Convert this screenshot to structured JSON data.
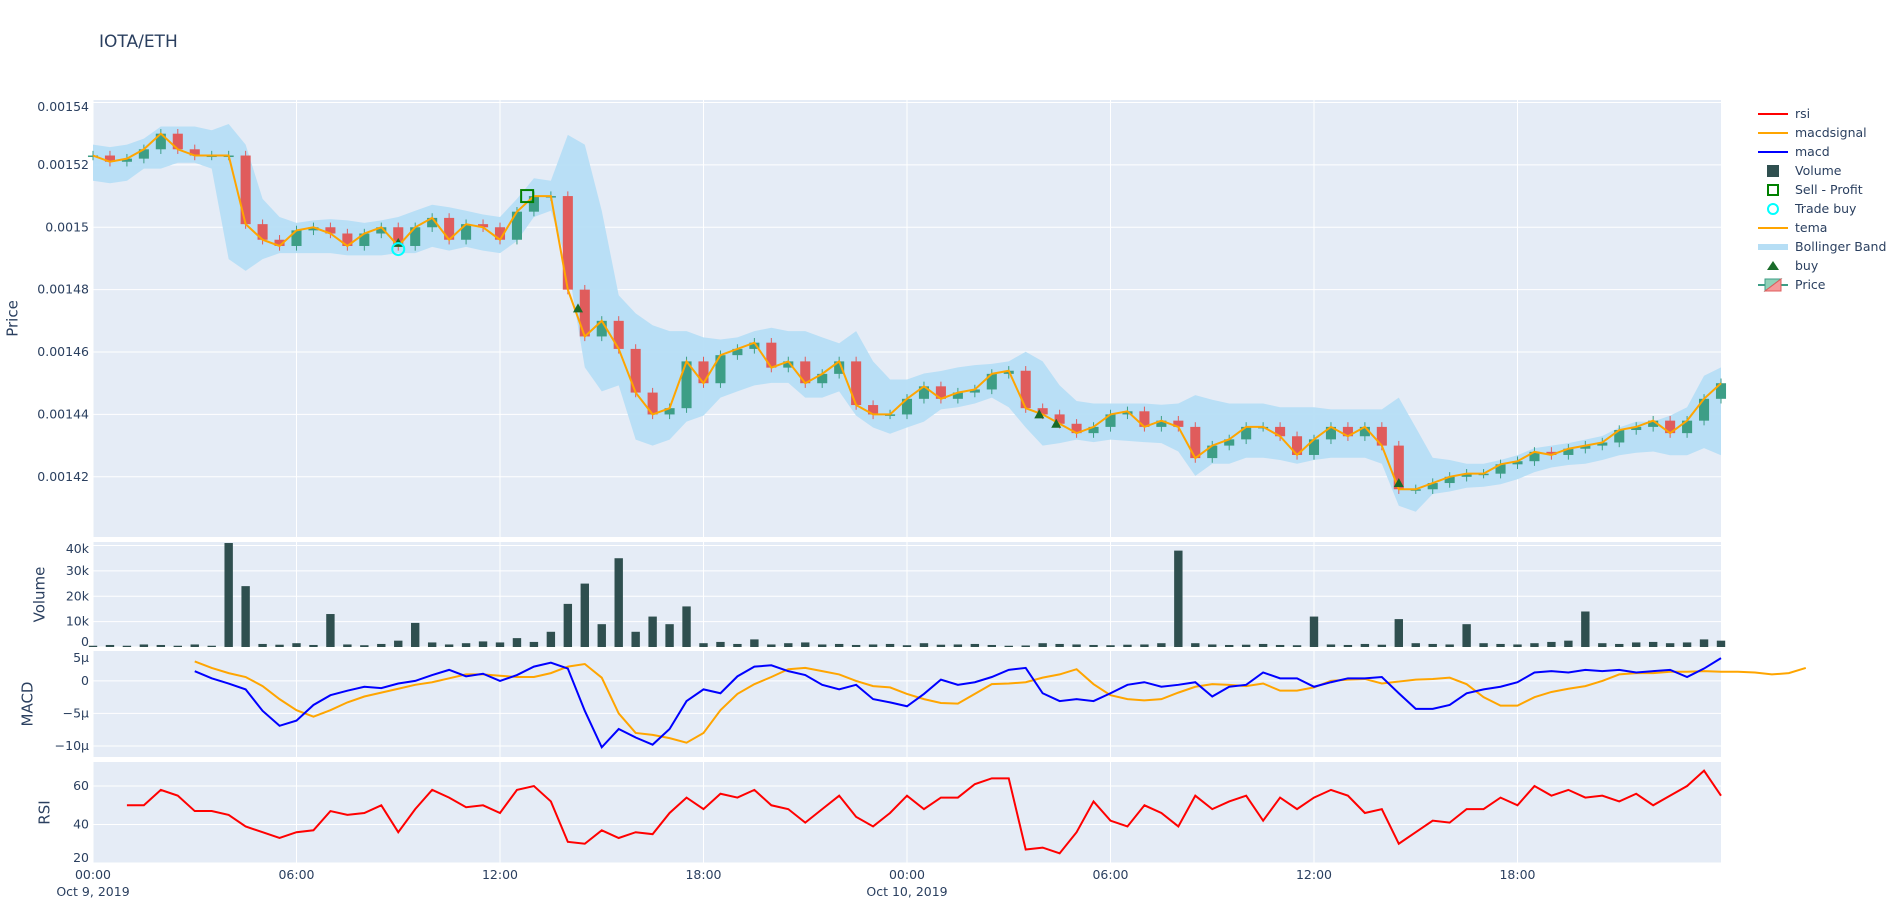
{
  "title": "IOTA/ETH",
  "colors": {
    "bg": "#e5ecf6",
    "grid": "#ffffff",
    "up": "#3d9e86",
    "down": "#e05c5c",
    "tema": "#ffa500",
    "bb": "#b6def5",
    "volume": "#2f4f4f",
    "macd": "#0000ff",
    "macdsignal": "#ffa500",
    "rsi": "#ff0000",
    "buy": "#1a6b2a",
    "sell": "#008000",
    "trade_buy": "#00ffff"
  },
  "legend": [
    {
      "label": "rsi",
      "icon": "line",
      "color": "#ff0000"
    },
    {
      "label": "macdsignal",
      "icon": "line",
      "color": "#ffa500"
    },
    {
      "label": "macd",
      "icon": "line",
      "color": "#0000ff"
    },
    {
      "label": "Volume",
      "icon": "square-filled",
      "color": "#2f4f4f"
    },
    {
      "label": "Sell - Profit",
      "icon": "square-open",
      "color": "#008000"
    },
    {
      "label": "Trade buy",
      "icon": "circle-open",
      "color": "#00ffff"
    },
    {
      "label": "tema",
      "icon": "line",
      "color": "#ffa500"
    },
    {
      "label": "Bollinger Band",
      "icon": "band",
      "color": "#b6def5"
    },
    {
      "label": "buy",
      "icon": "triangle-up",
      "color": "#1a6b2a"
    },
    {
      "label": "Price",
      "icon": "candlestick",
      "color": "#3d9e86"
    }
  ],
  "chart_data": {
    "type": "candlestick+subplots",
    "x_unit": "hours since Oct 9, 2019 00:00 (30-min sampling)",
    "x_range": [
      "Oct 9, 2019 00:00",
      "Oct 11, 2019 00:00"
    ],
    "x_ticks": [
      {
        "label": "00:00",
        "sub": "Oct 9, 2019",
        "h": 0
      },
      {
        "label": "06:00",
        "sub": "",
        "h": 6
      },
      {
        "label": "12:00",
        "sub": "",
        "h": 12
      },
      {
        "label": "18:00",
        "sub": "",
        "h": 18
      },
      {
        "label": "00:00",
        "sub": "Oct 10, 2019",
        "h": 24
      },
      {
        "label": "06:00",
        "sub": "",
        "h": 30
      },
      {
        "label": "12:00",
        "sub": "",
        "h": 36
      },
      {
        "label": "18:00",
        "sub": "",
        "h": 42
      }
    ],
    "grid": true,
    "legend_position": "right",
    "price": {
      "ylabel": "Price",
      "ylim": [
        0.0014007,
        0.0015408
      ],
      "ticks": [
        {
          "v": 0.00142,
          "label": "0.00142"
        },
        {
          "v": 0.00144,
          "label": "0.00144"
        },
        {
          "v": 0.00146,
          "label": "0.00146"
        },
        {
          "v": 0.00148,
          "label": "0.00148"
        },
        {
          "v": 0.0015,
          "label": "0.0015"
        },
        {
          "v": 0.00152,
          "label": "0.00152"
        },
        {
          "v": 0.00154,
          "label": "0.00154"
        }
      ],
      "close": [
        0.001523,
        0.001521,
        0.001522,
        0.001525,
        0.00153,
        0.001525,
        0.001523,
        0.001523,
        0.001523,
        0.001501,
        0.001496,
        0.001494,
        0.001499,
        0.0015,
        0.001498,
        0.001494,
        0.001498,
        0.0015,
        0.001494,
        0.0015,
        0.001503,
        0.001496,
        0.001501,
        0.0015,
        0.001496,
        0.001505,
        0.00151,
        0.00151,
        0.00148,
        0.001465,
        0.00147,
        0.001461,
        0.001447,
        0.00144,
        0.001442,
        0.001457,
        0.00145,
        0.001459,
        0.001461,
        0.001463,
        0.001455,
        0.001457,
        0.00145,
        0.001453,
        0.001457,
        0.001443,
        0.00144,
        0.00144,
        0.001445,
        0.001449,
        0.001445,
        0.001447,
        0.001448,
        0.001453,
        0.001454,
        0.001442,
        0.00144,
        0.001437,
        0.001434,
        0.001436,
        0.00144,
        0.001441,
        0.001436,
        0.001438,
        0.001436,
        0.001426,
        0.00143,
        0.001432,
        0.001436,
        0.001436,
        0.001433,
        0.001427,
        0.001432,
        0.001436,
        0.001433,
        0.001436,
        0.00143,
        0.001416,
        0.001416,
        0.001418,
        0.00142,
        0.001421,
        0.001421,
        0.001424,
        0.001425,
        0.001428,
        0.001427,
        0.001429,
        0.00143,
        0.001431,
        0.001435,
        0.001436,
        0.001438,
        0.001434,
        0.001438,
        0.001445,
        0.00145
      ],
      "bb_upper": [
        0.0015265,
        0.0015257,
        0.0015265,
        0.0015284,
        0.0015323,
        0.0015323,
        0.0015323,
        0.0015311,
        0.0015331,
        0.0015265,
        0.0015091,
        0.0015033,
        0.0015014,
        0.0015022,
        0.0015026,
        0.0015022,
        0.0015014,
        0.0015022,
        0.0015033,
        0.0015053,
        0.0015072,
        0.0015064,
        0.0015053,
        0.0015041,
        0.0015033,
        0.0015091,
        0.0015157,
        0.0015149,
        0.0015296,
        0.0015265,
        0.0015053,
        0.0014782,
        0.0014724,
        0.0014686,
        0.0014667,
        0.0014667,
        0.0014647,
        0.001464,
        0.0014647,
        0.0014667,
        0.0014678,
        0.0014667,
        0.0014667,
        0.0014647,
        0.0014628,
        0.0014667,
        0.001457,
        0.0014512,
        0.0014512,
        0.0014531,
        0.0014539,
        0.0014551,
        0.0014558,
        0.0014562,
        0.001457,
        0.0014601,
        0.001457,
        0.0014493,
        0.0014443,
        0.0014435,
        0.0014435,
        0.0014435,
        0.0014435,
        0.0014431,
        0.0014435,
        0.0014462,
        0.0014447,
        0.0014435,
        0.0014435,
        0.0014435,
        0.0014423,
        0.0014423,
        0.0014423,
        0.0014416,
        0.0014416,
        0.0014416,
        0.0014416,
        0.0014454,
        0.0014358,
        0.0014261,
        0.0014254,
        0.0014242,
        0.0014242,
        0.0014254,
        0.0014269,
        0.0014292,
        0.00143,
        0.0014308,
        0.0014319,
        0.0014331,
        0.0014358,
        0.0014377,
        0.0014377,
        0.0014396,
        0.0014423,
        0.0014524,
        0.0014551
      ],
      "bb_lower": [
        0.0015149,
        0.0015141,
        0.0015149,
        0.0015188,
        0.0015188,
        0.0015207,
        0.0015207,
        0.0015188,
        0.0014898,
        0.001486,
        0.0014898,
        0.0014917,
        0.0014917,
        0.0014917,
        0.0014917,
        0.001491,
        0.001491,
        0.001491,
        0.0014917,
        0.0014917,
        0.0014937,
        0.0014925,
        0.0014937,
        0.0014925,
        0.0014917,
        0.0014956,
        0.0015033,
        0.0015053,
        0.0014879,
        0.0014551,
        0.0014474,
        0.0014493,
        0.0014319,
        0.00143,
        0.0014319,
        0.0014377,
        0.0014396,
        0.0014454,
        0.0014474,
        0.0014493,
        0.0014501,
        0.0014501,
        0.0014454,
        0.0014454,
        0.0014474,
        0.0014396,
        0.0014358,
        0.0014338,
        0.0014358,
        0.0014377,
        0.0014416,
        0.0014423,
        0.0014435,
        0.0014454,
        0.0014423,
        0.0014358,
        0.00143,
        0.0014308,
        0.0014319,
        0.0014311,
        0.0014319,
        0.0014315,
        0.0014311,
        0.0014308,
        0.0014281,
        0.0014203,
        0.0014242,
        0.0014242,
        0.0014261,
        0.0014261,
        0.0014254,
        0.0014242,
        0.0014254,
        0.0014261,
        0.0014261,
        0.0014261,
        0.0014242,
        0.0014107,
        0.0014088,
        0.0014145,
        0.0014153,
        0.0014165,
        0.0014168,
        0.0014176,
        0.0014192,
        0.0014215,
        0.001423,
        0.0014238,
        0.0014242,
        0.0014254,
        0.0014269,
        0.0014277,
        0.0014281,
        0.0014269,
        0.0014269,
        0.0014292,
        0.0014269
      ],
      "buy_signals": [
        {
          "h": 9.0,
          "price": 0.001495
        },
        {
          "h": 14.3,
          "price": 0.001474
        },
        {
          "h": 27.9,
          "price": 0.00144
        },
        {
          "h": 28.4,
          "price": 0.001437
        },
        {
          "h": 38.5,
          "price": 0.001418
        }
      ],
      "trade_buys": [
        {
          "h": 9.0,
          "price": 0.001493
        }
      ],
      "sell_profit": [
        {
          "h": 12.8,
          "price": 0.00151
        }
      ]
    },
    "volume": {
      "ylabel": "Volume",
      "ylim": [
        0,
        41400
      ],
      "ticks": [
        {
          "v": 0,
          "label": "0"
        },
        {
          "v": 10000,
          "label": "10k"
        },
        {
          "v": 20000,
          "label": "20k"
        },
        {
          "v": 30000,
          "label": "30k"
        },
        {
          "v": 40000,
          "label": "40k"
        }
      ],
      "values": [
        500,
        800,
        500,
        1000,
        800,
        500,
        1000,
        500,
        41000,
        24000,
        1200,
        900,
        1500,
        800,
        13000,
        1000,
        700,
        1200,
        2500,
        9500,
        1800,
        1000,
        1500,
        2200,
        1800,
        3500,
        2000,
        6000,
        17000,
        25000,
        9000,
        35000,
        6000,
        12000,
        9000,
        16000,
        1500,
        2000,
        1200,
        3000,
        1000,
        1500,
        1800,
        1000,
        1200,
        800,
        1000,
        1200,
        700,
        1500,
        900,
        1000,
        1200,
        800,
        500,
        600,
        1500,
        1200,
        1000,
        800,
        700,
        900,
        1000,
        1500,
        38000,
        1500,
        1000,
        800,
        900,
        1200,
        800,
        700,
        12000,
        1000,
        800,
        1200,
        900,
        11000,
        1500,
        1200,
        1000,
        9000,
        1500,
        1200,
        1000,
        1500,
        2000,
        2500,
        14000,
        1500,
        1200,
        1800,
        2000,
        1500,
        1800,
        3000,
        2500
      ]
    },
    "macd": {
      "ylabel": "MACD",
      "ylim": [
        -11.7,
        4.6
      ],
      "unit": "µ",
      "ticks": [
        {
          "v": -10,
          "label": "−10µ"
        },
        {
          "v": -5,
          "label": "−5µ"
        },
        {
          "v": 0,
          "label": "0"
        },
        {
          "v": 5,
          "label": "5µ"
        }
      ],
      "start_h": 3,
      "macd": [
        1.5,
        0.4,
        -0.4,
        -1.3,
        -4.6,
        -6.9,
        -6.1,
        -3.7,
        -2.2,
        -1.5,
        -0.9,
        -1.1,
        -0.4,
        0,
        0.9,
        1.7,
        0.7,
        1.1,
        0,
        0.9,
        2.2,
        2.8,
        1.9,
        -4.6,
        -10.2,
        -7.4,
        -8.7,
        -9.8,
        -7.4,
        -3.1,
        -1.3,
        -1.9,
        0.7,
        2.2,
        2.4,
        1.5,
        0.9,
        -0.6,
        -1.3,
        -0.6,
        -2.8,
        -3.3,
        -3.9,
        -2.0,
        0.2,
        -0.6,
        -0.2,
        0.6,
        1.7,
        2.0,
        -1.9,
        -3.1,
        -2.8,
        -3.1,
        -1.9,
        -0.6,
        -0.2,
        -0.9,
        -0.6,
        -0.2,
        -2.4,
        -0.9,
        -0.6,
        1.3,
        0.4,
        0.4,
        -0.9,
        -0.2,
        0.4,
        0.4,
        0.6,
        -1.9,
        -4.3,
        -4.3,
        -3.7,
        -1.9,
        -1.3,
        -0.9,
        -0.2,
        1.3,
        1.5,
        1.3,
        1.7,
        1.5,
        1.7,
        1.3,
        1.5,
        1.7,
        0.6,
        1.9,
        3.5
      ],
      "macdsignal": [
        3.0,
        2.0,
        1.2,
        0.6,
        -0.8,
        -2.8,
        -4.5,
        -5.5,
        -4.5,
        -3.3,
        -2.4,
        -1.8,
        -1.2,
        -0.6,
        -0.2,
        0.4,
        1.0,
        1.0,
        0.8,
        0.6,
        0.6,
        1.2,
        2.2,
        2.6,
        0.5,
        -5.0,
        -8.0,
        -8.3,
        -8.8,
        -9.5,
        -8.0,
        -4.5,
        -2.0,
        -0.5,
        0.6,
        1.8,
        2.0,
        1.5,
        1.0,
        0.0,
        -0.8,
        -1.0,
        -2.0,
        -2.8,
        -3.4,
        -3.5,
        -2.0,
        -0.5,
        -0.4,
        -0.2,
        0.5,
        1.0,
        1.8,
        -0.5,
        -2.2,
        -2.8,
        -3.0,
        -2.8,
        -1.8,
        -0.9,
        -0.5,
        -0.6,
        -0.8,
        -0.4,
        -1.5,
        -1.5,
        -1.0,
        0.0,
        0.2,
        0.3,
        -0.4,
        -0.1,
        0.2,
        0.3,
        0.5,
        -0.5,
        -2.5,
        -3.8,
        -3.8,
        -2.5,
        -1.7,
        -1.2,
        -0.8,
        0.0,
        1.0,
        1.2,
        1.2,
        1.4,
        1.4,
        1.5,
        1.4,
        1.4,
        1.3,
        1.0,
        1.2,
        2.0
      ]
    },
    "rsi": {
      "ylabel": "RSI",
      "ylim": [
        20,
        72.5
      ],
      "ticks": [
        {
          "v": 20,
          "label": "20"
        },
        {
          "v": 40,
          "label": "40"
        },
        {
          "v": 60,
          "label": "60"
        }
      ],
      "start_h": 1,
      "values": [
        50,
        50,
        58,
        55,
        47,
        47,
        45,
        39,
        36,
        33,
        36,
        37,
        47,
        45,
        46,
        50,
        36,
        48,
        58,
        54,
        49,
        50,
        46,
        58,
        60,
        52,
        31,
        30,
        37,
        33,
        36,
        35,
        46,
        54,
        48,
        56,
        54,
        58,
        50,
        48,
        41,
        48,
        55,
        44,
        39,
        46,
        55,
        48,
        54,
        54,
        61,
        64,
        64,
        27,
        28,
        25,
        36,
        52,
        42,
        39,
        50,
        46,
        39,
        55,
        48,
        52,
        55,
        42,
        54,
        48,
        54,
        58,
        55,
        46,
        48,
        30,
        36,
        42,
        41,
        48,
        48,
        54,
        50,
        60,
        55,
        58,
        54,
        55,
        52,
        56,
        50,
        55,
        60,
        68,
        55
      ]
    }
  }
}
